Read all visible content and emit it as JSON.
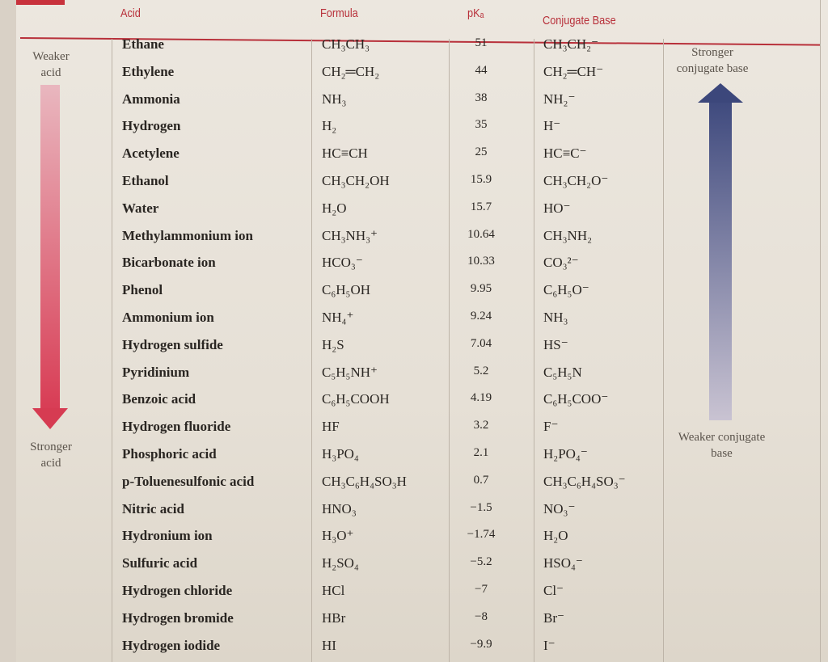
{
  "headers": {
    "acid": "Acid",
    "formula": "Formula",
    "pka": "pKₐ",
    "base": "Conjugate Base"
  },
  "labels": {
    "weaker_acid": "Weaker acid",
    "stronger_acid": "Stronger acid",
    "stronger_base": "Stronger conjugate base",
    "weaker_base": "Weaker conjugate base"
  },
  "colors": {
    "header_red": "#b8303a",
    "acid_arrow": "#d83d55",
    "base_arrow": "#3f4a7e"
  },
  "rows": [
    {
      "acid": "Ethane",
      "formula": "CH₃CH₃",
      "pka": "51",
      "base": "CH₃CH₂⁻"
    },
    {
      "acid": "Ethylene",
      "formula": "CH₂═CH₂",
      "pka": "44",
      "base": "CH₂═CH⁻"
    },
    {
      "acid": "Ammonia",
      "formula": "NH₃",
      "pka": "38",
      "base": "NH₂⁻"
    },
    {
      "acid": "Hydrogen",
      "formula": "H₂",
      "pka": "35",
      "base": "H⁻"
    },
    {
      "acid": "Acetylene",
      "formula": "HC≡CH",
      "pka": "25",
      "base": "HC≡C⁻"
    },
    {
      "acid": "Ethanol",
      "formula": "CH₃CH₂OH",
      "pka": "15.9",
      "base": "CH₃CH₂O⁻"
    },
    {
      "acid": "Water",
      "formula": "H₂O",
      "pka": "15.7",
      "base": "HO⁻"
    },
    {
      "acid": "Methylammonium ion",
      "formula": "CH₃NH₃⁺",
      "pka": "10.64",
      "base": "CH₃NH₂"
    },
    {
      "acid": "Bicarbonate ion",
      "formula": "HCO₃⁻",
      "pka": "10.33",
      "base": "CO₃²⁻"
    },
    {
      "acid": "Phenol",
      "formula": "C₆H₅OH",
      "pka": "9.95",
      "base": "C₆H₅O⁻"
    },
    {
      "acid": "Ammonium ion",
      "formula": "NH₄⁺",
      "pka": "9.24",
      "base": "NH₃"
    },
    {
      "acid": "Hydrogen sulfide",
      "formula": "H₂S",
      "pka": "7.04",
      "base": "HS⁻"
    },
    {
      "acid": "Pyridinium",
      "formula": "C₅H₅NH⁺",
      "pka": "5.2",
      "base": "C₅H₅N"
    },
    {
      "acid": "Benzoic acid",
      "formula": "C₆H₅COOH",
      "pka": "4.19",
      "base": "C₆H₅COO⁻"
    },
    {
      "acid": "Hydrogen fluoride",
      "formula": "HF",
      "pka": "3.2",
      "base": "F⁻"
    },
    {
      "acid": "Phosphoric acid",
      "formula": "H₃PO₄",
      "pka": "2.1",
      "base": "H₂PO₄⁻"
    },
    {
      "acid": "p-Toluenesulfonic acid",
      "formula": "CH₃C₆H₄SO₃H",
      "pka": "0.7",
      "base": "CH₃C₆H₄SO₃⁻"
    },
    {
      "acid": "Nitric acid",
      "formula": "HNO₃",
      "pka": "−1.5",
      "base": "NO₃⁻"
    },
    {
      "acid": "Hydronium ion",
      "formula": "H₃O⁺",
      "pka": "−1.74",
      "base": "H₂O"
    },
    {
      "acid": "Sulfuric acid",
      "formula": "H₂SO₄",
      "pka": "−5.2",
      "base": "HSO₄⁻"
    },
    {
      "acid": "Hydrogen chloride",
      "formula": "HCl",
      "pka": "−7",
      "base": "Cl⁻"
    },
    {
      "acid": "Hydrogen bromide",
      "formula": "HBr",
      "pka": "−8",
      "base": "Br⁻"
    },
    {
      "acid": "Hydrogen iodide",
      "formula": "HI",
      "pka": "−9.9",
      "base": "I⁻"
    }
  ]
}
